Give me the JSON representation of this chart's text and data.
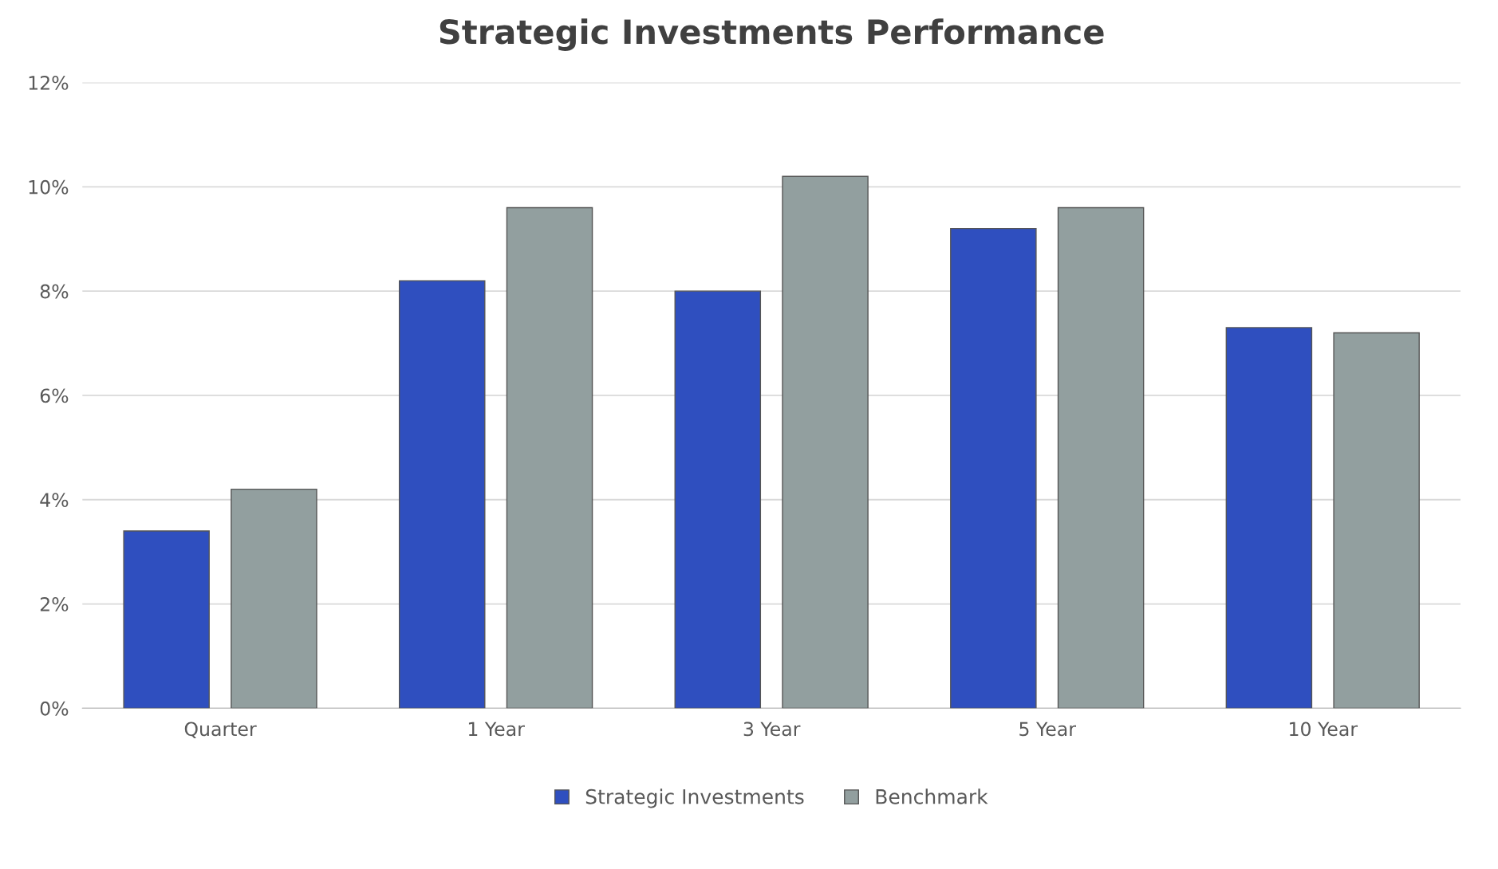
{
  "chart_data": {
    "type": "bar",
    "title": "Strategic Investments Performance",
    "categories": [
      "Quarter",
      "1 Year",
      "3 Year",
      "5 Year",
      "10 Year"
    ],
    "series": [
      {
        "name": "Strategic Investments",
        "color": "#2f4fbf",
        "values": [
          3.4,
          8.2,
          8.0,
          9.2,
          7.3
        ]
      },
      {
        "name": "Benchmark",
        "color": "#929f9f",
        "values": [
          4.2,
          9.6,
          10.2,
          9.6,
          7.2
        ]
      }
    ],
    "ylim": [
      0,
      12
    ],
    "yticks": [
      {
        "value": 0,
        "label": "0%"
      },
      {
        "value": 2,
        "label": "2%"
      },
      {
        "value": 4,
        "label": "4%"
      },
      {
        "value": 6,
        "label": "6%"
      },
      {
        "value": 8,
        "label": "8%"
      },
      {
        "value": 10,
        "label": "10%"
      },
      {
        "value": 12,
        "label": "12%"
      }
    ],
    "grid": "y",
    "legend": "bottom"
  }
}
